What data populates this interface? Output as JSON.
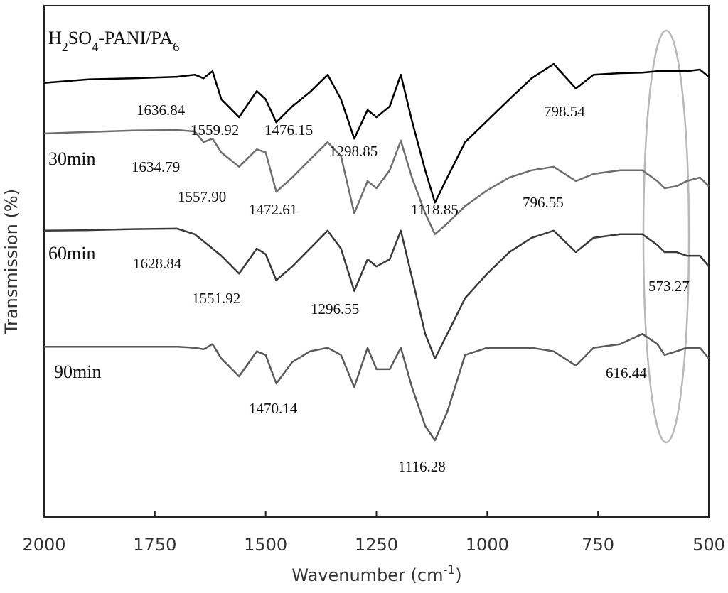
{
  "chart_data": {
    "type": "line",
    "x_label": "Wavenumber (cm-1)",
    "y_label": "Transmission (%)",
    "x": [
      2000,
      1900,
      1800,
      1700,
      1660,
      1640,
      1620,
      1600,
      1560,
      1520,
      1500,
      1476,
      1440,
      1400,
      1360,
      1330,
      1300,
      1270,
      1250,
      1220,
      1195,
      1170,
      1140,
      1118,
      1090,
      1050,
      1000,
      950,
      900,
      850,
      800,
      760,
      700,
      650,
      616,
      600,
      573,
      550,
      520,
      500
    ],
    "xlim": [
      2000,
      500
    ],
    "xticks": [
      2000,
      1750,
      1500,
      1250,
      1000,
      750,
      500
    ],
    "ylim": [
      0,
      100
    ],
    "series": [
      {
        "name": "H2SO4-PANI/PA6",
        "color": "#000000",
        "values": [
          84.9,
          85.6,
          85.8,
          86.1,
          86.5,
          85.8,
          87.2,
          81.7,
          78.2,
          83.3,
          81.7,
          77.2,
          80.3,
          83.1,
          86.5,
          81.7,
          74.0,
          79.6,
          78.2,
          80.3,
          86.5,
          77.5,
          67.8,
          61.5,
          66.4,
          73.3,
          77.5,
          81.7,
          85.8,
          88.6,
          83.8,
          86.5,
          86.8,
          86.9,
          87.2,
          87.2,
          87.2,
          87.2,
          87.5,
          86.1
        ]
      },
      {
        "name": "30min",
        "color": "#6e6e6e",
        "values": [
          75.0,
          75.3,
          75.6,
          75.7,
          75.4,
          73.3,
          74.0,
          71.3,
          68.5,
          71.9,
          71.3,
          63.6,
          66.4,
          69.9,
          73.3,
          70.6,
          59.4,
          65.7,
          64.3,
          67.8,
          73.6,
          66.4,
          59.4,
          55.3,
          57.4,
          60.8,
          63.9,
          66.4,
          67.8,
          68.5,
          65.7,
          67.1,
          67.8,
          67.8,
          65.7,
          64.3,
          64.7,
          65.7,
          66.4,
          64.7
        ]
      },
      {
        "name": "60min",
        "color": "#3a3a3a",
        "values": [
          56.0,
          56.1,
          56.3,
          56.4,
          55.3,
          53.9,
          52.5,
          51.1,
          47.6,
          52.5,
          51.4,
          46.3,
          49.0,
          52.5,
          56.0,
          52.5,
          44.2,
          50.4,
          49.0,
          50.4,
          56.0,
          46.9,
          35.8,
          31.0,
          35.8,
          42.8,
          47.6,
          51.8,
          54.6,
          56.0,
          51.8,
          54.6,
          55.3,
          55.3,
          53.2,
          51.8,
          51.8,
          51.1,
          51.1,
          49.0
        ]
      },
      {
        "name": "90min",
        "color": "#5a5a5a",
        "values": [
          33.3,
          33.3,
          33.3,
          33.3,
          33.1,
          32.8,
          33.8,
          31.0,
          27.5,
          32.4,
          31.7,
          26.1,
          30.3,
          32.4,
          33.1,
          31.7,
          25.4,
          33.1,
          28.9,
          28.9,
          33.1,
          25.4,
          17.8,
          15.0,
          20.6,
          31.7,
          33.1,
          33.1,
          33.1,
          32.4,
          29.6,
          33.1,
          33.8,
          35.8,
          33.8,
          31.7,
          32.4,
          33.1,
          33.1,
          31.0
        ]
      }
    ],
    "annotations": [
      "1636.84",
      "1559.92",
      "1476.15",
      "1298.85",
      "798.54",
      "1634.79",
      "1557.90",
      "1472.61",
      "1118.85",
      "796.55",
      "1628.84",
      "1551.92",
      "1296.55",
      "573.27",
      "616.44",
      "1470.14",
      "1116.28"
    ]
  }
}
